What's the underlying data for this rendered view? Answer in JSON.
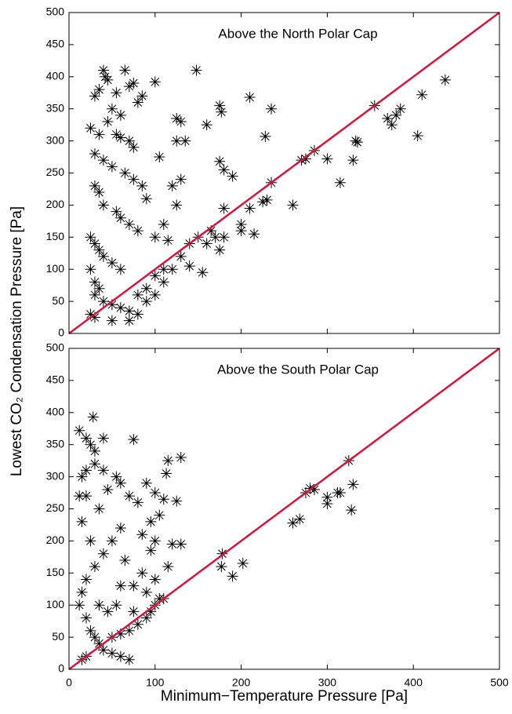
{
  "chart_data": [
    {
      "type": "scatter",
      "title": "Above the North Polar Cap",
      "ylabel": "Lowest CO₂ Condensation Pressure [Pa]",
      "marker": "asterisk",
      "color": "#000000",
      "identity_line": true,
      "identity_color": "#d6143c",
      "show_xtick_labels": false,
      "xlim": [
        0,
        500
      ],
      "ylim": [
        0,
        500
      ],
      "xticks": [
        0,
        100,
        200,
        300,
        400,
        500
      ],
      "yticks": [
        0,
        50,
        100,
        150,
        200,
        250,
        300,
        350,
        400,
        450,
        500
      ],
      "x": [
        40,
        42,
        45,
        65,
        75,
        100,
        148,
        30,
        35,
        55,
        70,
        85,
        80,
        50,
        60,
        45,
        25,
        35,
        55,
        60,
        70,
        75,
        30,
        40,
        50,
        65,
        75,
        85,
        90,
        30,
        35,
        40,
        55,
        60,
        70,
        80,
        25,
        30,
        35,
        40,
        50,
        60,
        25,
        30,
        35,
        30,
        40,
        50,
        60,
        70,
        80,
        25,
        30,
        50,
        70,
        90,
        100,
        110,
        120,
        130,
        140,
        150,
        100,
        110,
        90,
        80,
        105,
        120,
        130,
        125,
        110,
        100,
        115,
        140,
        155,
        160,
        165,
        170,
        175,
        180,
        130,
        135,
        125,
        160,
        175,
        177,
        210,
        235,
        228,
        175,
        180,
        190,
        200,
        200,
        210,
        225,
        235,
        260,
        270,
        275,
        285,
        300,
        315,
        330,
        333,
        335,
        355,
        370,
        375,
        385,
        380,
        405,
        410,
        437,
        125,
        180,
        215,
        230
      ],
      "values": [
        410,
        400,
        395,
        410,
        390,
        392,
        410,
        370,
        380,
        375,
        385,
        370,
        360,
        350,
        340,
        330,
        320,
        310,
        310,
        305,
        300,
        290,
        280,
        270,
        260,
        250,
        240,
        230,
        210,
        230,
        220,
        200,
        190,
        180,
        170,
        160,
        150,
        140,
        130,
        120,
        110,
        100,
        100,
        80,
        70,
        60,
        50,
        45,
        40,
        35,
        30,
        30,
        25,
        20,
        20,
        50,
        60,
        80,
        100,
        120,
        140,
        150,
        90,
        100,
        70,
        60,
        275,
        230,
        240,
        200,
        170,
        150,
        145,
        105,
        95,
        140,
        160,
        150,
        130,
        150,
        330,
        300,
        335,
        325,
        355,
        345,
        368,
        350,
        307,
        268,
        255,
        245,
        170,
        160,
        195,
        205,
        235,
        200,
        270,
        272,
        285,
        272,
        235,
        270,
        300,
        298,
        355,
        335,
        325,
        350,
        340,
        308,
        372,
        395,
        300,
        195,
        155,
        208
      ]
    },
    {
      "type": "scatter",
      "title": "Above the South Polar Cap",
      "xlabel": "Minimum−Temperature Pressure [Pa]",
      "marker": "asterisk",
      "color": "#000000",
      "identity_line": true,
      "identity_color": "#d6143c",
      "show_xtick_labels": true,
      "xlim": [
        0,
        500
      ],
      "ylim": [
        0,
        500
      ],
      "xticks": [
        0,
        100,
        200,
        300,
        400,
        500
      ],
      "yticks": [
        0,
        50,
        100,
        150,
        200,
        250,
        300,
        350,
        400,
        450,
        500
      ],
      "x": [
        28,
        12,
        20,
        25,
        30,
        40,
        75,
        15,
        20,
        30,
        40,
        45,
        55,
        60,
        70,
        80,
        90,
        100,
        110,
        115,
        113,
        130,
        125,
        105,
        95,
        85,
        60,
        50,
        40,
        30,
        20,
        15,
        12,
        20,
        25,
        30,
        35,
        40,
        50,
        60,
        70,
        15,
        20,
        80,
        90,
        100,
        110,
        105,
        95,
        70,
        60,
        50,
        120,
        130,
        115,
        100,
        95,
        85,
        75,
        60,
        55,
        45,
        35,
        25,
        15,
        20,
        12,
        178,
        177,
        190,
        202,
        260,
        268,
        275,
        280,
        285,
        300,
        300,
        312,
        315,
        325,
        330,
        328,
        100,
        90,
        65,
        75,
        35
      ],
      "values": [
        393,
        372,
        360,
        350,
        340,
        360,
        358,
        300,
        310,
        320,
        310,
        280,
        300,
        290,
        270,
        260,
        290,
        275,
        265,
        325,
        305,
        330,
        262,
        240,
        230,
        210,
        220,
        200,
        180,
        160,
        140,
        120,
        100,
        80,
        60,
        50,
        40,
        30,
        25,
        20,
        15,
        15,
        20,
        70,
        80,
        100,
        110,
        110,
        90,
        60,
        55,
        50,
        195,
        195,
        160,
        200,
        185,
        150,
        130,
        130,
        100,
        90,
        100,
        200,
        230,
        270,
        270,
        180,
        160,
        145,
        165,
        228,
        234,
        275,
        282,
        280,
        268,
        258,
        275,
        275,
        325,
        288,
        248,
        140,
        120,
        170,
        90,
        250
      ]
    }
  ]
}
